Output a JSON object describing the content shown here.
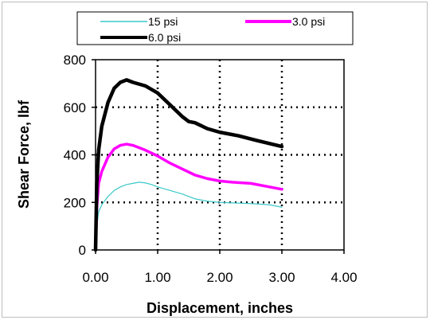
{
  "chart_data": {
    "type": "line",
    "title": "",
    "xlabel": "Displacement, inches",
    "ylabel": "Shear Force, lbf",
    "xlim": [
      0,
      4
    ],
    "ylim": [
      0,
      800
    ],
    "x_ticks": [
      "0.00",
      "1.00",
      "2.00",
      "3.00",
      "4.00"
    ],
    "y_ticks": [
      "0",
      "200",
      "400",
      "600",
      "800"
    ],
    "grid": "dotted major gridlines",
    "legend_position": "top",
    "series": [
      {
        "name": "15 psi",
        "color": "#3cc8c8",
        "x": [
          0.0,
          0.02,
          0.05,
          0.1,
          0.2,
          0.3,
          0.4,
          0.5,
          0.6,
          0.7,
          0.8,
          0.9,
          1.0,
          1.2,
          1.4,
          1.6,
          1.8,
          2.0,
          2.2,
          2.5,
          2.8,
          3.0
        ],
        "y": [
          0,
          100,
          160,
          190,
          225,
          250,
          265,
          275,
          280,
          285,
          282,
          275,
          265,
          250,
          235,
          215,
          205,
          200,
          198,
          195,
          190,
          180
        ]
      },
      {
        "name": "3.0 psi",
        "color": "#ff00ff",
        "x": [
          0.0,
          0.02,
          0.05,
          0.1,
          0.2,
          0.3,
          0.4,
          0.5,
          0.6,
          0.8,
          1.0,
          1.2,
          1.4,
          1.6,
          1.8,
          2.0,
          2.2,
          2.5,
          2.8,
          3.0
        ],
        "y": [
          0,
          180,
          280,
          330,
          390,
          425,
          440,
          445,
          440,
          420,
          395,
          365,
          340,
          315,
          300,
          290,
          285,
          280,
          265,
          255
        ]
      },
      {
        "name": "6.0 psi",
        "color": "#000000",
        "x": [
          0.0,
          0.02,
          0.05,
          0.1,
          0.2,
          0.3,
          0.4,
          0.5,
          0.6,
          0.8,
          1.0,
          1.2,
          1.4,
          1.5,
          1.6,
          1.8,
          2.0,
          2.3,
          2.6,
          3.0
        ],
        "y": [
          0,
          280,
          420,
          520,
          620,
          680,
          705,
          715,
          705,
          690,
          660,
          610,
          560,
          540,
          535,
          510,
          495,
          480,
          460,
          435
        ]
      }
    ]
  }
}
